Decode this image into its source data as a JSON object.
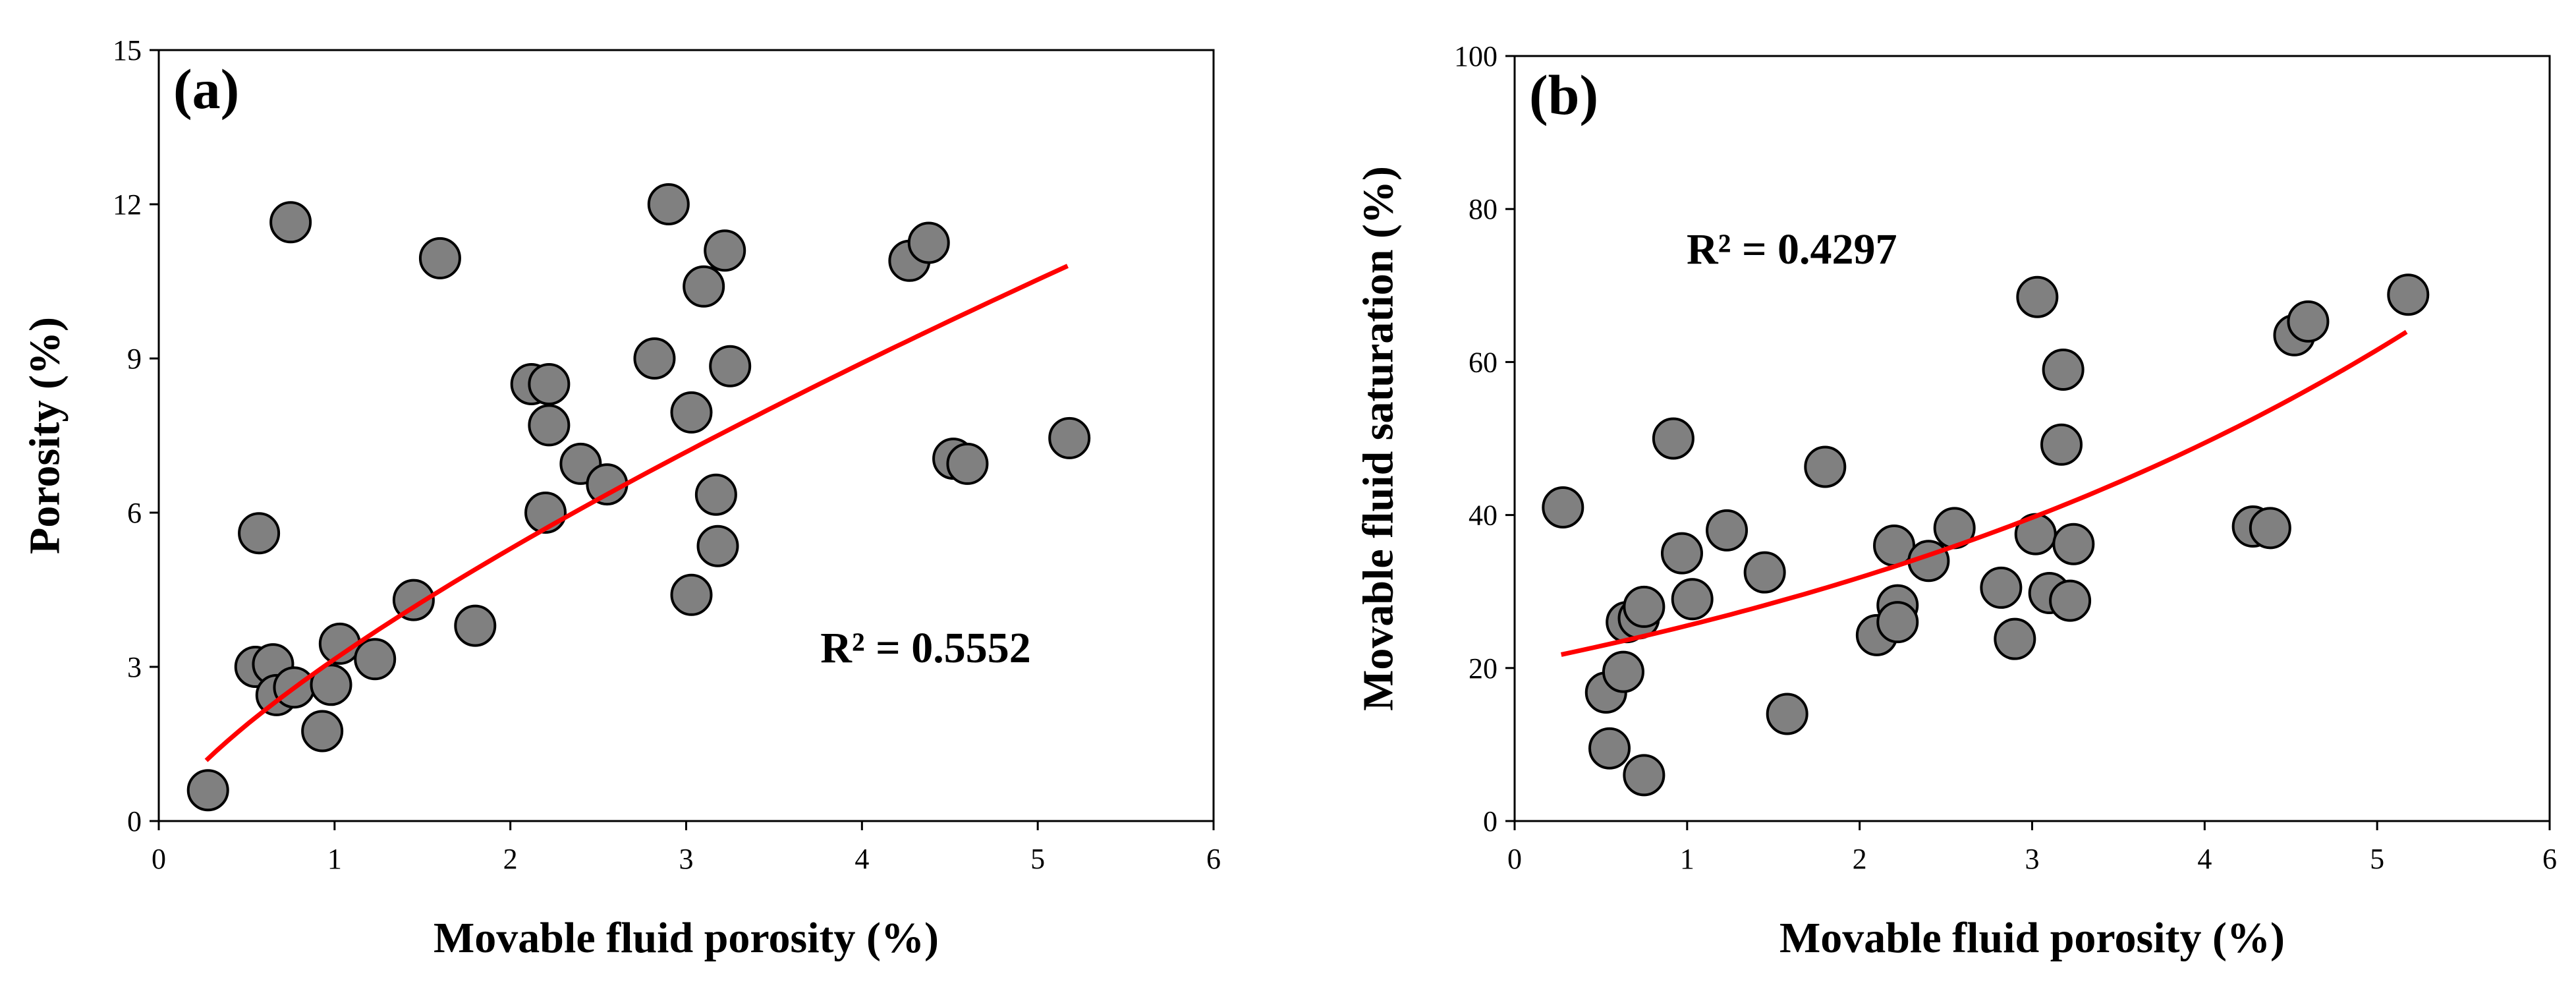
{
  "chart_data": [
    {
      "type": "scatter",
      "panel_label": "(a)",
      "xlabel": "Movable fluid porosity (%)",
      "ylabel": "Porosity (%)",
      "xlim": [
        0,
        6
      ],
      "ylim": [
        0,
        15
      ],
      "xticks": [
        0,
        1,
        2,
        3,
        4,
        5,
        6
      ],
      "yticks": [
        0,
        3,
        6,
        9,
        12,
        15
      ],
      "grid": false,
      "marker_color": "#808080",
      "fit_color": "#ff0000",
      "r2_text": "R² = 0.5552",
      "fit": {
        "model": "power",
        "a": 3.15,
        "b": 0.75,
        "x_range": [
          0.27,
          5.17
        ]
      },
      "points": [
        {
          "x": 0.28,
          "y": 0.6
        },
        {
          "x": 0.55,
          "y": 3.0
        },
        {
          "x": 0.65,
          "y": 3.05
        },
        {
          "x": 0.67,
          "y": 2.45
        },
        {
          "x": 0.77,
          "y": 2.6
        },
        {
          "x": 0.93,
          "y": 1.75
        },
        {
          "x": 0.98,
          "y": 2.65
        },
        {
          "x": 1.03,
          "y": 3.45
        },
        {
          "x": 1.23,
          "y": 3.15
        },
        {
          "x": 1.45,
          "y": 4.3
        },
        {
          "x": 1.8,
          "y": 3.8
        },
        {
          "x": 0.57,
          "y": 5.6
        },
        {
          "x": 0.75,
          "y": 11.65
        },
        {
          "x": 1.6,
          "y": 10.95
        },
        {
          "x": 2.12,
          "y": 8.5
        },
        {
          "x": 2.22,
          "y": 8.5
        },
        {
          "x": 2.22,
          "y": 7.7
        },
        {
          "x": 2.2,
          "y": 6.0
        },
        {
          "x": 2.4,
          "y": 6.95
        },
        {
          "x": 2.55,
          "y": 6.55
        },
        {
          "x": 2.82,
          "y": 9.0
        },
        {
          "x": 2.9,
          "y": 12.0
        },
        {
          "x": 3.03,
          "y": 7.95
        },
        {
          "x": 3.03,
          "y": 4.4
        },
        {
          "x": 3.1,
          "y": 10.4
        },
        {
          "x": 3.17,
          "y": 6.35
        },
        {
          "x": 3.18,
          "y": 5.35
        },
        {
          "x": 3.22,
          "y": 11.1
        },
        {
          "x": 3.25,
          "y": 8.85
        },
        {
          "x": 4.27,
          "y": 10.9
        },
        {
          "x": 4.38,
          "y": 11.25
        },
        {
          "x": 4.52,
          "y": 7.05
        },
        {
          "x": 4.6,
          "y": 6.95
        },
        {
          "x": 5.18,
          "y": 7.45
        }
      ]
    },
    {
      "type": "scatter",
      "panel_label": "(b)",
      "xlabel": "Movable fluid porosity (%)",
      "ylabel": "Movable fluid saturation (%)",
      "xlim": [
        0,
        6
      ],
      "ylim": [
        0,
        100
      ],
      "xticks": [
        0,
        1,
        2,
        3,
        4,
        5,
        6
      ],
      "yticks": [
        0,
        20,
        40,
        60,
        80,
        100
      ],
      "grid": false,
      "marker_color": "#808080",
      "fit_color": "#ff0000",
      "r2_text": "R² = 0.4297",
      "fit": {
        "model": "exponential",
        "a": 20.5,
        "b": 0.22,
        "x_range": [
          0.27,
          5.17
        ]
      },
      "points": [
        {
          "x": 0.28,
          "y": 41.0
        },
        {
          "x": 0.53,
          "y": 16.8
        },
        {
          "x": 0.55,
          "y": 9.5
        },
        {
          "x": 0.63,
          "y": 19.5
        },
        {
          "x": 0.65,
          "y": 26.0
        },
        {
          "x": 0.72,
          "y": 26.5
        },
        {
          "x": 0.75,
          "y": 28.0
        },
        {
          "x": 0.75,
          "y": 6.0
        },
        {
          "x": 0.92,
          "y": 50.0
        },
        {
          "x": 0.97,
          "y": 35.0
        },
        {
          "x": 1.03,
          "y": 29.0
        },
        {
          "x": 1.23,
          "y": 38.0
        },
        {
          "x": 1.45,
          "y": 32.5
        },
        {
          "x": 1.58,
          "y": 14.0
        },
        {
          "x": 1.8,
          "y": 46.3
        },
        {
          "x": 2.1,
          "y": 24.3
        },
        {
          "x": 2.2,
          "y": 36.0
        },
        {
          "x": 2.22,
          "y": 28.2
        },
        {
          "x": 2.22,
          "y": 26.0
        },
        {
          "x": 2.4,
          "y": 34.0
        },
        {
          "x": 2.55,
          "y": 38.3
        },
        {
          "x": 2.82,
          "y": 30.5
        },
        {
          "x": 2.9,
          "y": 23.8
        },
        {
          "x": 3.02,
          "y": 37.5
        },
        {
          "x": 3.03,
          "y": 68.5
        },
        {
          "x": 3.1,
          "y": 29.8
        },
        {
          "x": 3.17,
          "y": 49.2
        },
        {
          "x": 3.18,
          "y": 59.0
        },
        {
          "x": 3.22,
          "y": 28.8
        },
        {
          "x": 3.24,
          "y": 36.2
        },
        {
          "x": 4.28,
          "y": 38.5
        },
        {
          "x": 4.38,
          "y": 38.3
        },
        {
          "x": 4.52,
          "y": 63.5
        },
        {
          "x": 4.6,
          "y": 65.3
        },
        {
          "x": 5.18,
          "y": 68.8
        }
      ]
    }
  ]
}
